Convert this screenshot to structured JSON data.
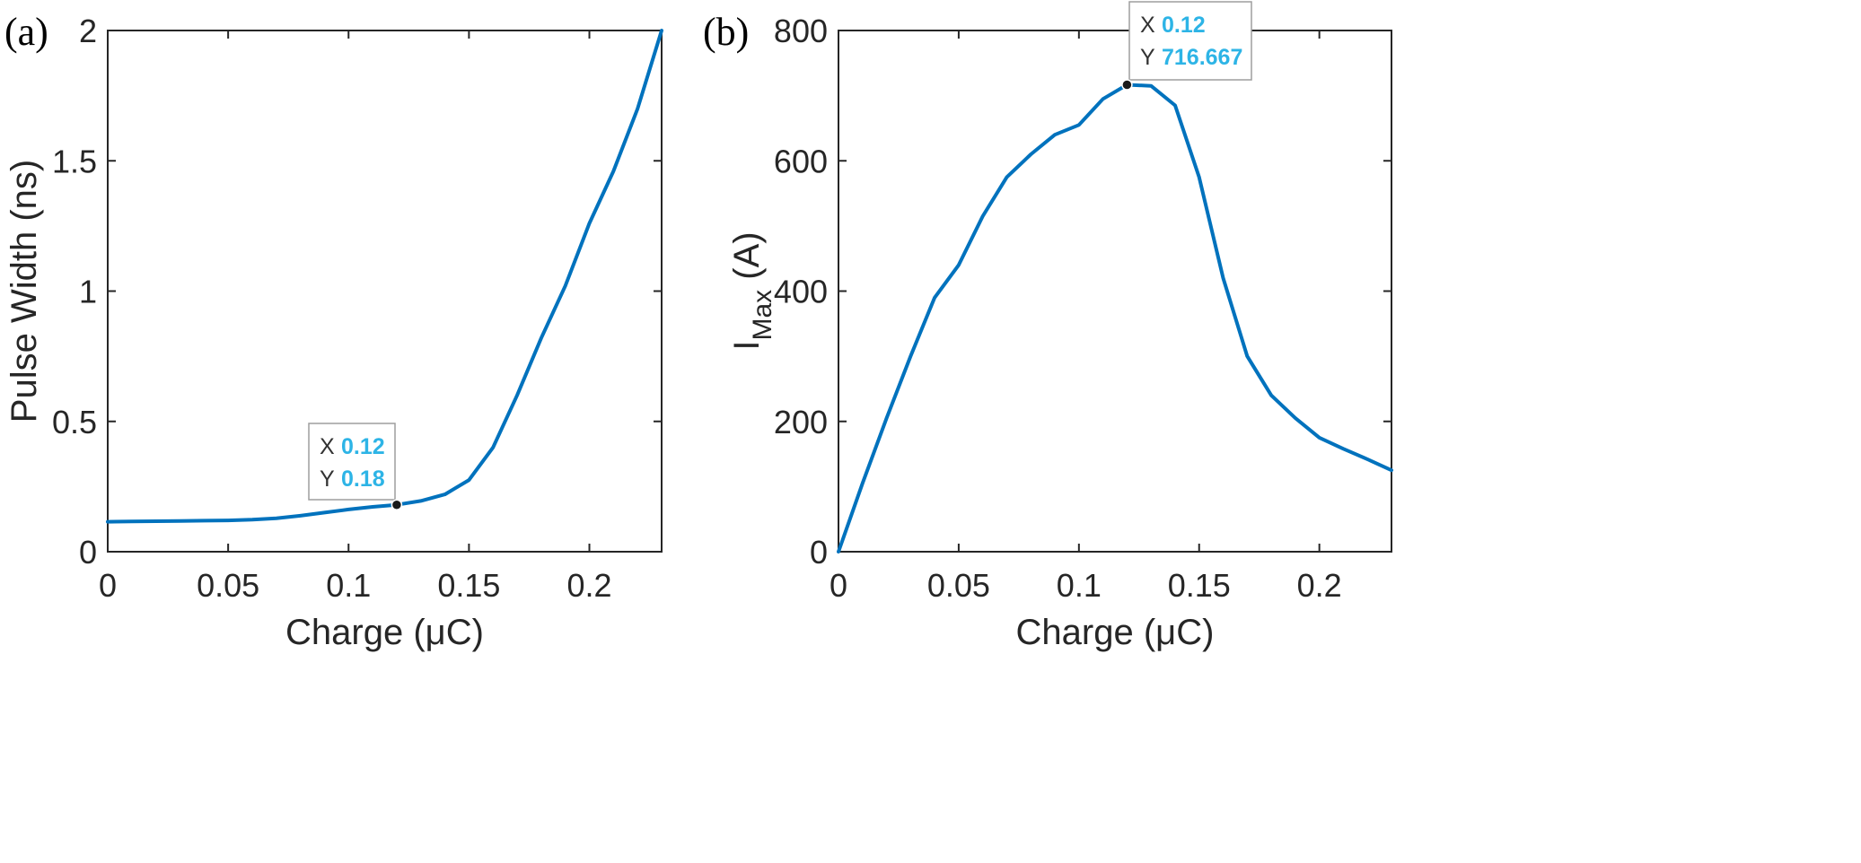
{
  "chart_data": [
    {
      "type": "line",
      "panel_label": "(a)",
      "xlabel": "Charge (μC)",
      "ylabel": "Pulse Width (ns)",
      "xlim": [
        0,
        0.23
      ],
      "ylim": [
        0,
        2
      ],
      "xticks": [
        "0",
        "0.05",
        "0.1",
        "0.15",
        "0.2"
      ],
      "yticks": [
        "0",
        "0.5",
        "1",
        "1.5",
        "2"
      ],
      "series": [
        {
          "color": "#0072bd",
          "x": [
            0,
            0.01,
            0.02,
            0.03,
            0.04,
            0.05,
            0.06,
            0.07,
            0.08,
            0.09,
            0.1,
            0.11,
            0.12,
            0.13,
            0.14,
            0.15,
            0.16,
            0.17,
            0.18,
            0.19,
            0.2,
            0.21,
            0.22,
            0.23
          ],
          "y": [
            0.115,
            0.116,
            0.117,
            0.118,
            0.119,
            0.12,
            0.123,
            0.128,
            0.138,
            0.15,
            0.162,
            0.172,
            0.18,
            0.195,
            0.22,
            0.275,
            0.4,
            0.6,
            0.82,
            1.02,
            1.26,
            1.46,
            1.7,
            2.0
          ]
        }
      ],
      "datatip": {
        "x_key": "X",
        "x_value": "0.12",
        "y_key": "Y",
        "y_value": "0.18",
        "x": 0.12,
        "y": 0.18
      },
      "grid": false
    },
    {
      "type": "line",
      "panel_label": "(b)",
      "xlabel": "Charge (μC)",
      "ylabel_main": "I",
      "ylabel_sub": "Max",
      "ylabel_unit": " (A)",
      "xlim": [
        0,
        0.23
      ],
      "ylim": [
        0,
        800
      ],
      "xticks": [
        "0",
        "0.05",
        "0.1",
        "0.15",
        "0.2"
      ],
      "yticks": [
        "0",
        "200",
        "400",
        "600",
        "800"
      ],
      "series": [
        {
          "color": "#0072bd",
          "x": [
            0,
            0.01,
            0.02,
            0.03,
            0.04,
            0.05,
            0.06,
            0.07,
            0.08,
            0.09,
            0.1,
            0.11,
            0.12,
            0.13,
            0.14,
            0.15,
            0.16,
            0.17,
            0.18,
            0.19,
            0.2,
            0.21,
            0.22,
            0.23
          ],
          "y": [
            0,
            105,
            205,
            300,
            390,
            440,
            515,
            575,
            610,
            640,
            655,
            695,
            716.667,
            715,
            685,
            575,
            420,
            300,
            240,
            205,
            175,
            158,
            142,
            125
          ]
        }
      ],
      "datatip": {
        "x_key": "X",
        "x_value": "0.12",
        "y_key": "Y",
        "y_value": "716.667",
        "x": 0.12,
        "y": 716.667
      },
      "grid": false
    }
  ]
}
